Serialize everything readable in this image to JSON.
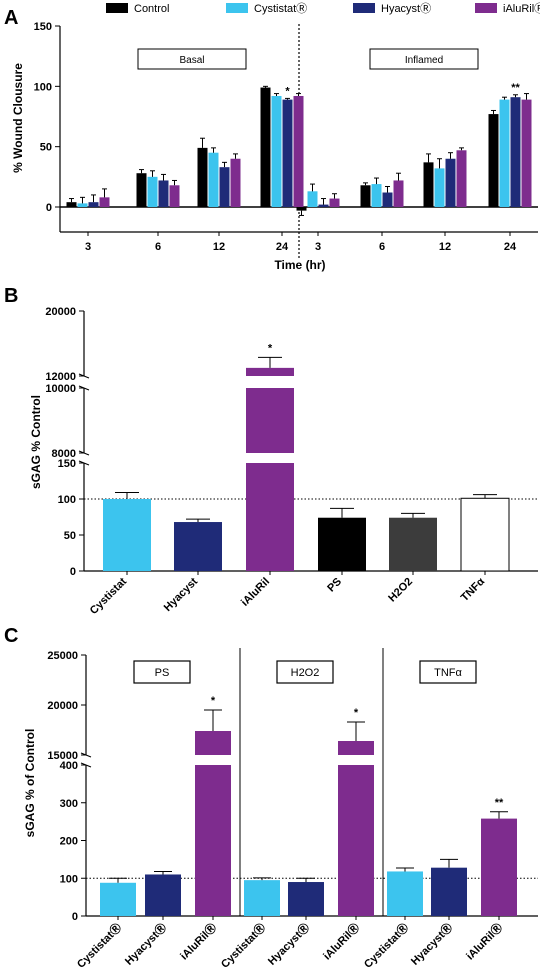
{
  "colors": {
    "Control": "#000000",
    "Cystistat": "#3CC4EE",
    "Hyacyst": "#1F2B78",
    "iAluRil": "#7E2C8E",
    "PS": "#000000",
    "H2O2": "#3C3C3C",
    "TNF": "#ffffff"
  },
  "legend": [
    {
      "label": "Control",
      "color": "#000000"
    },
    {
      "label": "CystistatⓇ",
      "color": "#3CC4EE"
    },
    {
      "label": "HyacystⓇ",
      "color": "#1F2B78"
    },
    {
      "label": "iAluRilⓇ",
      "color": "#7E2C8E"
    }
  ],
  "chart_data": [
    {
      "panel": "A",
      "type": "bar",
      "ylabel": "% Wound Clousure",
      "xlabel": "Time (hr)",
      "ylim": [
        -20,
        150
      ],
      "yticks": [
        0,
        50,
        100,
        150
      ],
      "group_labels": [
        "Basal",
        "Inflamed"
      ],
      "categories": [
        "3",
        "6",
        "12",
        "24",
        "3",
        "6",
        "12",
        "24"
      ],
      "series": [
        {
          "name": "Control",
          "values": [
            4,
            28,
            49,
            99,
            -3,
            18,
            37,
            77
          ],
          "errors": [
            3,
            3,
            8,
            1,
            4,
            2,
            7,
            3
          ]
        },
        {
          "name": "CystistatⓇ",
          "values": [
            3,
            25,
            45,
            92,
            13,
            19,
            32,
            89
          ],
          "errors": [
            5,
            5,
            4,
            2,
            6,
            5,
            8,
            2
          ]
        },
        {
          "name": "HyacystⓇ",
          "values": [
            4,
            22,
            33,
            89,
            2,
            12,
            40,
            91
          ],
          "errors": [
            6,
            5,
            4,
            1,
            5,
            5,
            5,
            2
          ]
        },
        {
          "name": "iAluRilⓇ",
          "values": [
            8,
            18,
            40,
            92,
            7,
            22,
            47,
            89
          ],
          "errors": [
            7,
            4,
            4,
            2,
            4,
            6,
            2,
            5
          ]
        }
      ],
      "annotations": [
        {
          "category_index": 3,
          "series": 2,
          "text": "*"
        },
        {
          "category_index": 7,
          "series": 2,
          "text": "**"
        }
      ]
    },
    {
      "panel": "B",
      "type": "bar",
      "ylabel": "sGAG % Control",
      "categories": [
        "Cystistat",
        "Hyacyst",
        "iAluRil",
        "PS",
        "H2O2",
        "TNFα"
      ],
      "values": [
        100,
        68,
        13000,
        74,
        74,
        101
      ],
      "errors": [
        9,
        4,
        1300,
        13,
        6,
        5
      ],
      "reference_line": 100,
      "yticks_display": [
        "0",
        "50",
        "100",
        "150",
        "8000",
        "10000",
        "12000",
        "20000"
      ],
      "annotations": [
        {
          "category_index": 2,
          "text": "*"
        }
      ]
    },
    {
      "panel": "C",
      "type": "bar",
      "ylabel": "sGAG % of Control",
      "group_labels": [
        "PS",
        "H2O2",
        "TNFα"
      ],
      "categories": [
        "CystistatⓇ",
        "HyacystⓇ",
        "iAluRilⓇ",
        "CystistatⓇ",
        "HyacystⓇ",
        "iAluRilⓇ",
        "CystistatⓇ",
        "HyacystⓇ",
        "iAluRilⓇ"
      ],
      "values": [
        88,
        110,
        17400,
        95,
        90,
        16400,
        118,
        128,
        258
      ],
      "errors": [
        12,
        8,
        2100,
        6,
        10,
        1900,
        9,
        22,
        18
      ],
      "reference_line": 100,
      "yticks_display": [
        "0",
        "100",
        "200",
        "300",
        "400",
        "15000",
        "20000",
        "25000"
      ],
      "annotations": [
        {
          "category_index": 2,
          "text": "*"
        },
        {
          "category_index": 5,
          "text": "*"
        },
        {
          "category_index": 8,
          "text": "**"
        }
      ]
    }
  ],
  "text": {
    "panelA": "A",
    "panelB": "B",
    "panelC": "C",
    "basal": "Basal",
    "inflamed": "Inflamed",
    "ylabelA": "% Wound Clousure",
    "xlabelA": "Time (hr)",
    "ylabelB": "sGAG % Control",
    "ylabelC": "sGAG % of Control",
    "boxPS": "PS",
    "boxH2O2": "H2O2",
    "boxTNF": "TNFα"
  }
}
